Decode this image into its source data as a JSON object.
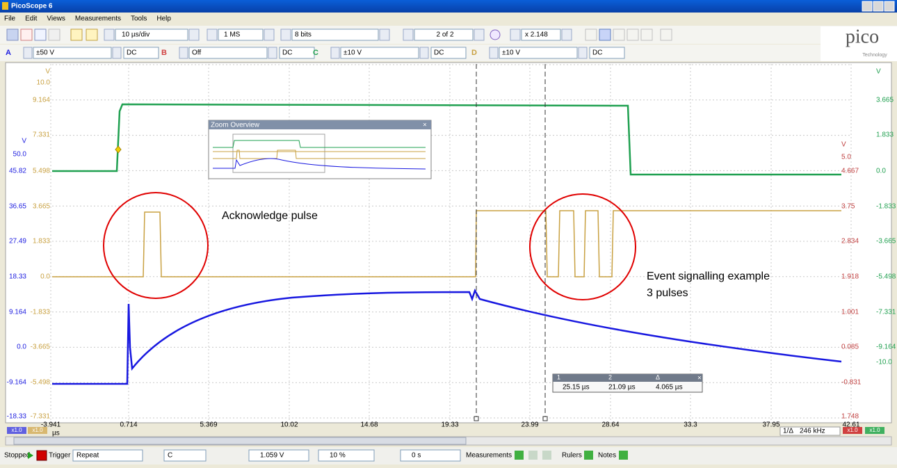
{
  "window": {
    "title": "PicoScope 6"
  },
  "menu": [
    "File",
    "Edit",
    "Views",
    "Measurements",
    "Tools",
    "Help"
  ],
  "toolbar": {
    "timebase": "10 µs/div",
    "samples": "1 MS",
    "resolution": "8 bits",
    "buffer": "2 of 2",
    "zoom": "x 2.148",
    "logo": "pico",
    "logo_sub": "Technology"
  },
  "channels": [
    {
      "name": "A",
      "range": "±50 V",
      "coupling": "DC"
    },
    {
      "name": "B",
      "range": "Off",
      "coupling": "DC"
    },
    {
      "name": "C",
      "range": "±10 V",
      "coupling": "DC"
    },
    {
      "name": "D",
      "range": "±10 V",
      "coupling": "DC"
    }
  ],
  "scope": {
    "axes": {
      "a_unit": "V",
      "a_labels": [
        "50.0",
        "45.82",
        "36.65",
        "27.49",
        "18.33",
        "9.164",
        "0.0",
        "-9.164",
        "-18.33"
      ],
      "c_unit": "V",
      "c_labels": [
        "10.0",
        "9.164",
        "7.331",
        "5.498",
        "3.665",
        "1.833",
        "0.0",
        "-1.833",
        "-3.665",
        "-5.498",
        "-7.331"
      ],
      "b_unit": "V",
      "b_labels": [
        "5.0",
        "4.667",
        "3.75",
        "2.834",
        "1.918",
        "1.001",
        "0.085",
        "-0.831",
        "1.748"
      ],
      "d_unit": "V",
      "d_labels": [
        "3.665",
        "1.833",
        "0.0",
        "-1.833",
        "-3.665",
        "-5.498",
        "-7.331",
        "-9.164",
        "-10.0"
      ]
    },
    "x_labels": [
      "-3.941",
      "0.714",
      "5.369",
      "10.02",
      "14.68",
      "19.33",
      "23.99",
      "28.64",
      "33.3",
      "37.95",
      "42.61"
    ],
    "x_unit": "µs",
    "scale_badge": "x1.0",
    "annotations": [
      "Acknowledge pulse",
      "Event signalling example",
      "3 pulses"
    ],
    "zoom_overview": "Zoom Overview",
    "rulers": {
      "headers": [
        "1",
        "2",
        "Δ"
      ],
      "values": [
        "25.15 µs",
        "21.09 µs",
        "4.065 µs"
      ],
      "freq_label": "1/Δ",
      "freq": "246 kHz"
    }
  },
  "statusbar": {
    "state": "Stopped",
    "trigger_label": "Trigger",
    "trigger_mode": "Repeat",
    "trigger_source": "C",
    "threshold": "1.059 V",
    "pretrigger": "10 %",
    "delay": "0 s",
    "measurements": "Measurements",
    "rulers": "Rulers",
    "notes": "Notes"
  }
}
